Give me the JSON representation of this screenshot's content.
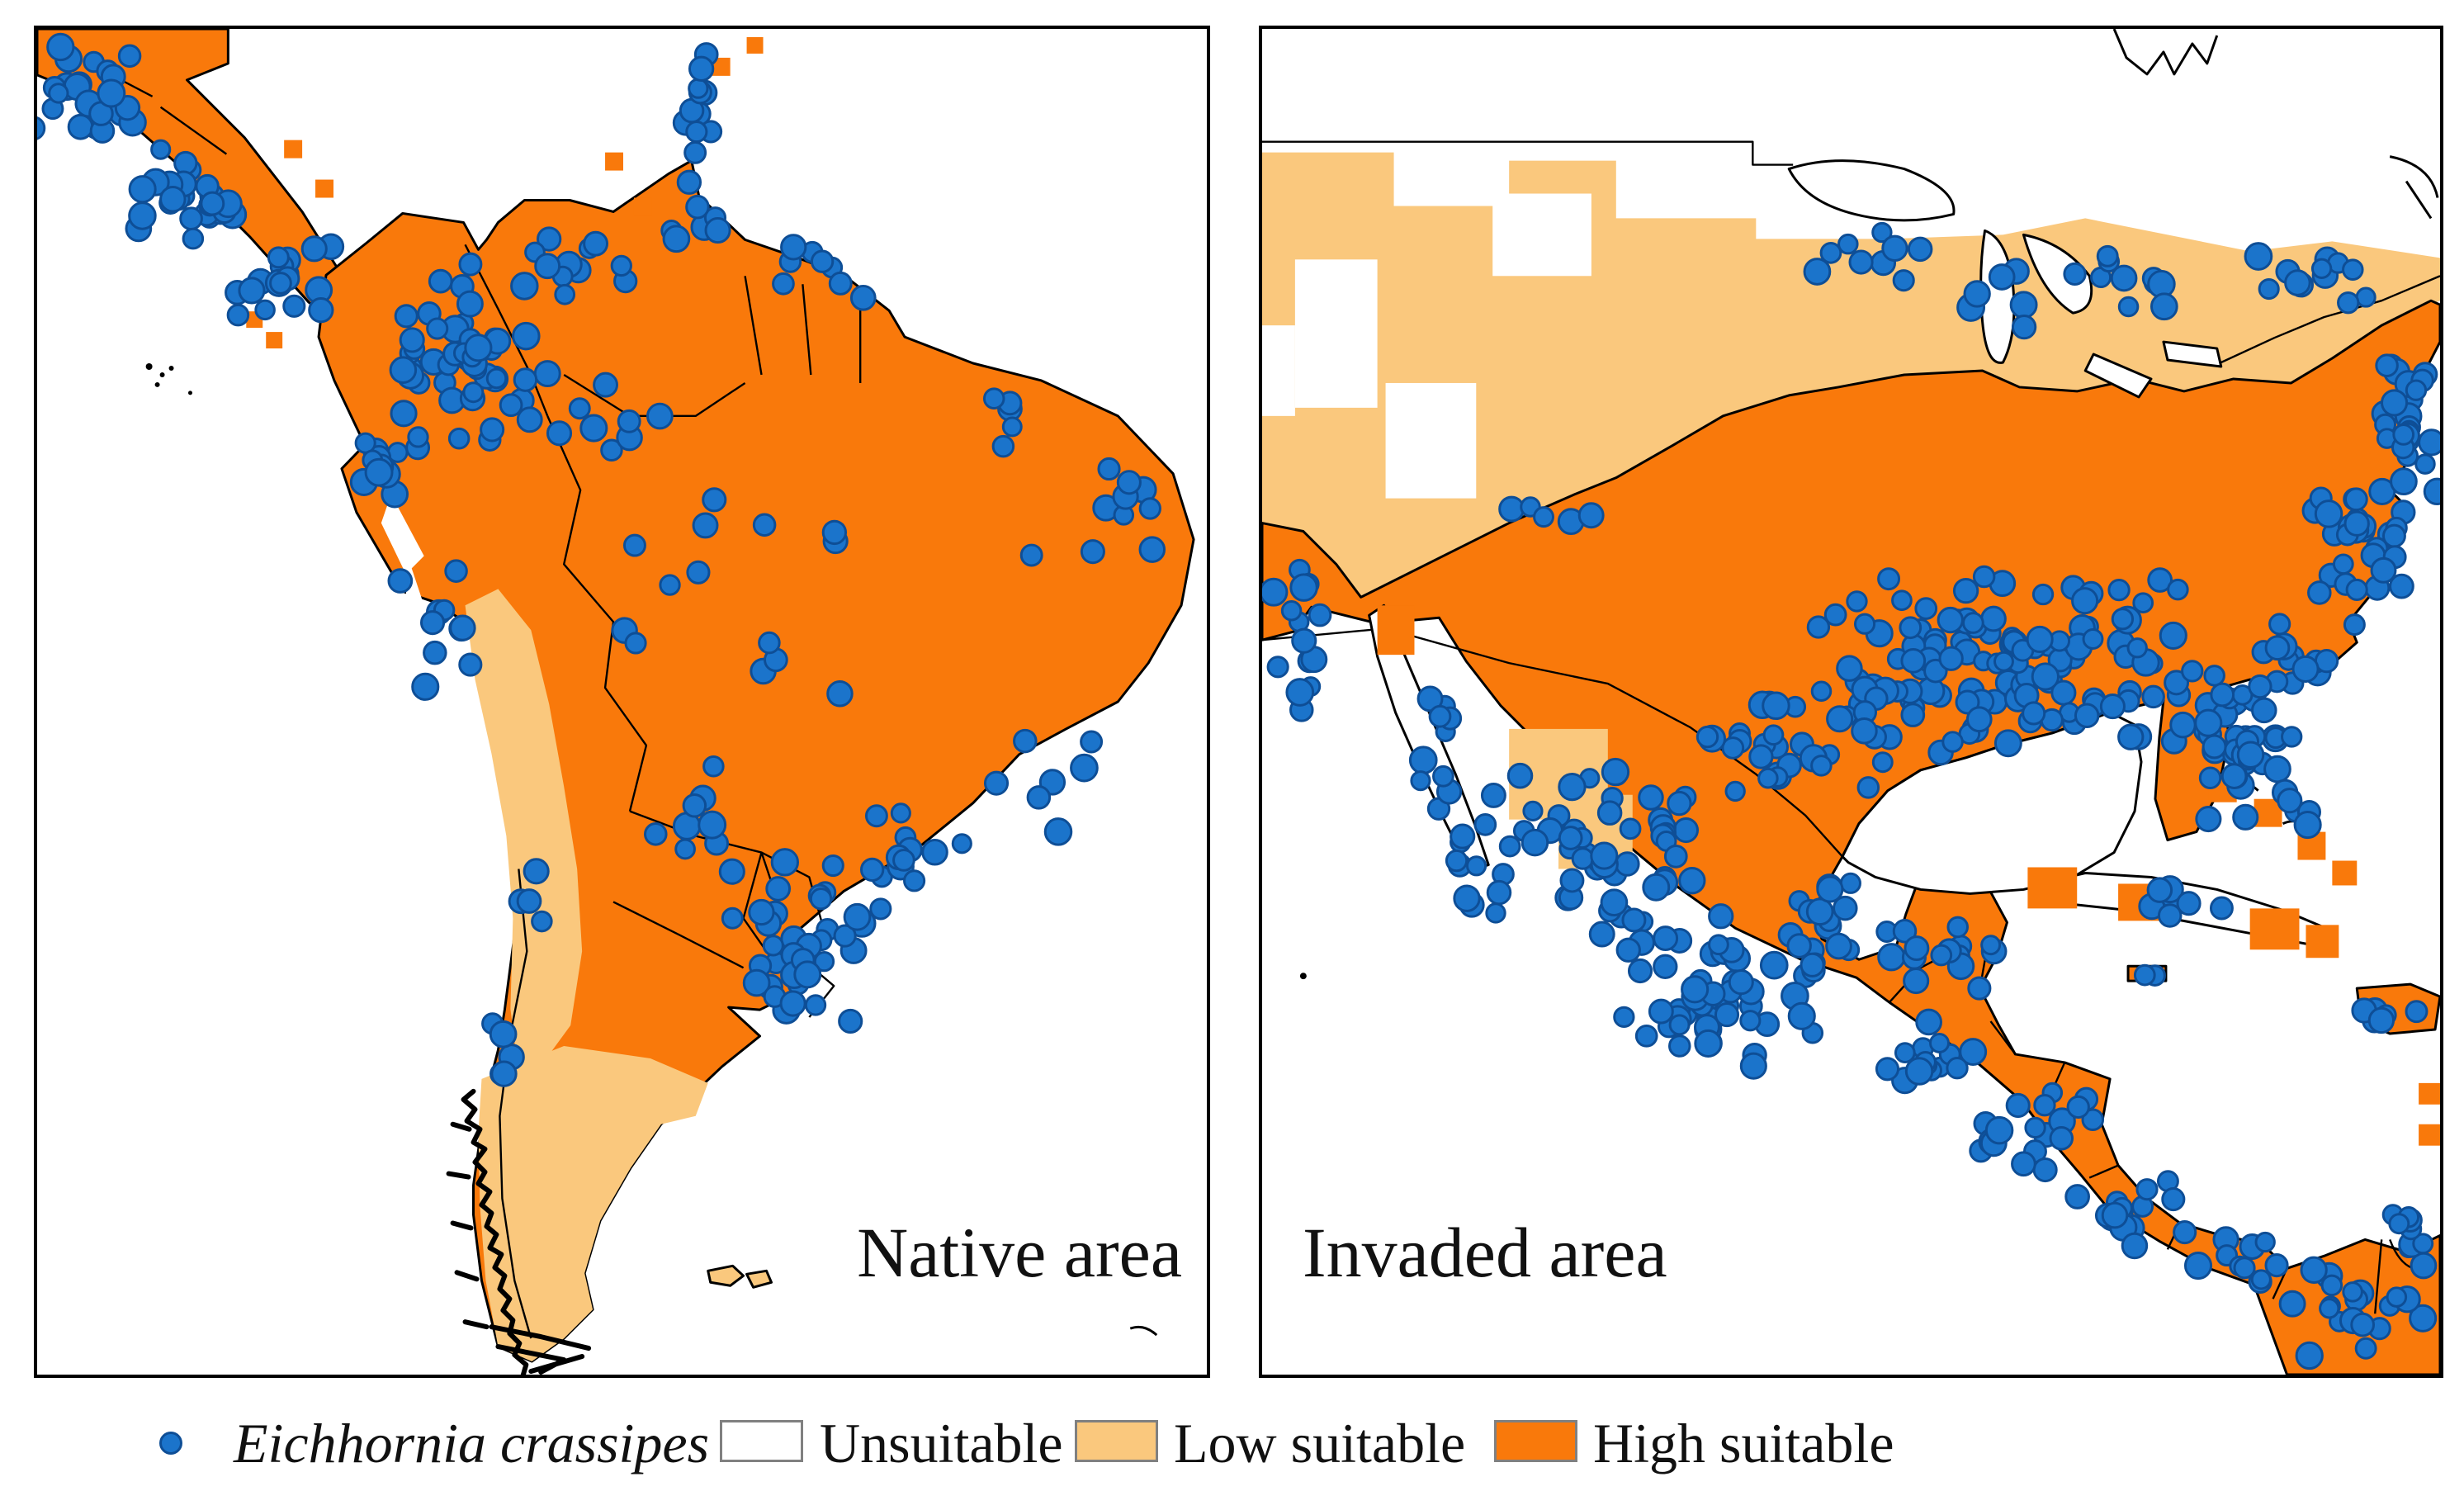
{
  "figure": {
    "panels": {
      "native": {
        "label": "Native area"
      },
      "invaded": {
        "label": "Invaded area"
      }
    },
    "legend": {
      "species_label": "Eichhornia crassipes",
      "unsuitable_label": "Unsuitable",
      "low_label": "Low suitable",
      "high_label": "High suitable"
    },
    "colors": {
      "occurrence": "#1B74CB",
      "occurrence_edge": "#0E4E96",
      "unsuitable": "#FFFFFF",
      "low_suitable": "#FAC87D",
      "high_suitable": "#F9790B",
      "outline": "#000000",
      "legend_box_border": "#808080"
    },
    "maps": {
      "native": {
        "clusters": [
          [
            60,
            80,
            70,
            60,
            22
          ],
          [
            180,
            200,
            85,
            65,
            26
          ],
          [
            300,
            310,
            70,
            55,
            18
          ],
          [
            800,
            105,
            28,
            95,
            12
          ],
          [
            520,
            390,
            115,
            115,
            46
          ],
          [
            650,
            280,
            85,
            45,
            12
          ],
          [
            790,
            245,
            45,
            30,
            6
          ],
          [
            950,
            300,
            95,
            40,
            8
          ],
          [
            420,
            520,
            60,
            85,
            14
          ],
          [
            485,
            725,
            55,
            90,
            10
          ],
          [
            860,
            660,
            260,
            160,
            14
          ],
          [
            1300,
            590,
            105,
            85,
            10
          ],
          [
            1230,
            900,
            85,
            85,
            8
          ],
          [
            1060,
            1000,
            105,
            85,
            12
          ],
          [
            940,
            1120,
            115,
            135,
            36
          ],
          [
            805,
            950,
            85,
            60,
            8
          ],
          [
            565,
            1255,
            22,
            95,
            5
          ],
          [
            605,
            1055,
            28,
            60,
            4
          ],
          [
            1180,
            480,
            60,
            40,
            5
          ],
          [
            700,
            480,
            80,
            60,
            8
          ]
        ]
      },
      "invaded": {
        "clusters": [
          [
            760,
            300,
            95,
            60,
            9
          ],
          [
            905,
            330,
            60,
            50,
            6
          ],
          [
            1060,
            300,
            85,
            60,
            10
          ],
          [
            1255,
            300,
            95,
            60,
            12
          ],
          [
            1390,
            480,
            45,
            95,
            26
          ],
          [
            1330,
            625,
            75,
            95,
            30
          ],
          [
            1270,
            760,
            65,
            45,
            12
          ],
          [
            900,
            770,
            260,
            125,
            120
          ],
          [
            1190,
            875,
            75,
            110,
            42
          ],
          [
            645,
            865,
            125,
            75,
            30
          ],
          [
            360,
            600,
            100,
            60,
            5
          ],
          [
            42,
            760,
            40,
            125,
            14
          ],
          [
            380,
            1000,
            200,
            120,
            66
          ],
          [
            560,
            1170,
            155,
            95,
            52
          ],
          [
            690,
            1080,
            60,
            60,
            15
          ],
          [
            830,
            1130,
            80,
            55,
            15
          ],
          [
            820,
            1235,
            85,
            55,
            15
          ],
          [
            950,
            1335,
            85,
            60,
            18
          ],
          [
            1065,
            1440,
            85,
            50,
            15
          ],
          [
            1185,
            1490,
            60,
            40,
            10
          ],
          [
            1335,
            1550,
            95,
            70,
            20
          ],
          [
            1400,
            1465,
            40,
            45,
            8
          ],
          [
            1100,
            1060,
            125,
            32,
            8
          ],
          [
            1380,
            1190,
            52,
            26,
            6
          ],
          [
            1250,
            950,
            65,
            40,
            4
          ],
          [
            210,
            870,
            50,
            95,
            8
          ],
          [
            1070,
            1147,
            22,
            12,
            2
          ]
        ]
      }
    }
  }
}
